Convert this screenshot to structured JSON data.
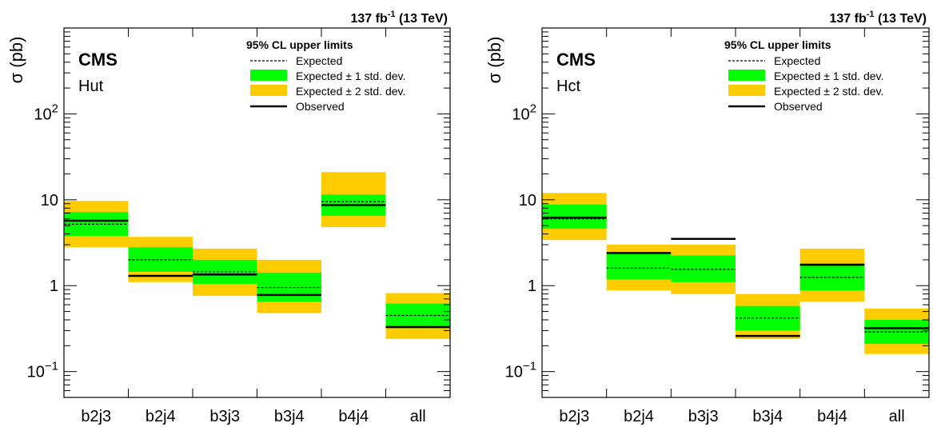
{
  "colors": {
    "band1": "#00ff00",
    "band2": "#ffcc00",
    "line": "#000000"
  },
  "legend_labels": {
    "title": "95% CL upper limits",
    "expected": "Expected",
    "one_sigma": "Expected ± 1 std. dev.",
    "two_sigma": "Expected ± 2 std. dev.",
    "observed": "Observed"
  },
  "lumi_label": {
    "main": "137 fb",
    "sup": "-1",
    "energy": " (13 TeV)"
  },
  "chart_data": [
    {
      "type": "bar",
      "experiment": "CMS",
      "process": "Hut",
      "ylabel": "σ (pb)",
      "yscale": "log",
      "ylim": [
        0.05,
        1000
      ],
      "yticks": [
        {
          "value": 0.1,
          "base": "10",
          "exp": "−1"
        },
        {
          "value": 1,
          "label": "1"
        },
        {
          "value": 10,
          "label": "10"
        },
        {
          "value": 100,
          "base": "10",
          "exp": "2"
        }
      ],
      "categories": [
        "b2j3",
        "b2j4",
        "b3j3",
        "b3j4",
        "b4j4",
        "all"
      ],
      "legend_position": "top-right",
      "series": [
        {
          "name": "Observed",
          "values": [
            5.7,
            1.3,
            1.35,
            0.78,
            8.7,
            0.33
          ]
        },
        {
          "name": "Expected",
          "values": [
            5.2,
            2.0,
            1.45,
            0.95,
            9.5,
            0.45
          ]
        },
        {
          "name": "Expected ± 1 std. dev.",
          "low": [
            3.8,
            1.45,
            1.05,
            0.65,
            6.5,
            0.32
          ],
          "high": [
            7.2,
            2.8,
            2.0,
            1.42,
            11.5,
            0.62
          ]
        },
        {
          "name": "Expected ± 2 std. dev.",
          "low": [
            2.8,
            1.1,
            0.76,
            0.48,
            4.8,
            0.24
          ],
          "high": [
            9.7,
            3.7,
            2.7,
            2.0,
            21.0,
            0.82
          ]
        }
      ]
    },
    {
      "type": "bar",
      "experiment": "CMS",
      "process": "Hct",
      "ylabel": "σ (pb)",
      "yscale": "log",
      "ylim": [
        0.05,
        1000
      ],
      "yticks": [
        {
          "value": 0.1,
          "base": "10",
          "exp": "−1"
        },
        {
          "value": 1,
          "label": "1"
        },
        {
          "value": 10,
          "label": "10"
        },
        {
          "value": 100,
          "base": "10",
          "exp": "2"
        }
      ],
      "categories": [
        "b2j3",
        "b2j4",
        "b3j3",
        "b3j4",
        "b4j4",
        "all"
      ],
      "legend_position": "top-right",
      "series": [
        {
          "name": "Observed",
          "values": [
            6.2,
            2.4,
            3.5,
            0.26,
            1.75,
            0.32
          ]
        },
        {
          "name": "Expected",
          "values": [
            6.0,
            1.6,
            1.55,
            0.42,
            1.25,
            0.29
          ]
        },
        {
          "name": "Expected ± 1 std. dev.",
          "low": [
            4.6,
            1.18,
            1.1,
            0.3,
            0.88,
            0.21
          ],
          "high": [
            8.8,
            2.35,
            2.25,
            0.58,
            1.82,
            0.4
          ]
        },
        {
          "name": "Expected ± 2 std. dev.",
          "low": [
            3.4,
            0.88,
            0.8,
            0.24,
            0.65,
            0.16
          ],
          "high": [
            12.0,
            3.0,
            3.0,
            0.8,
            2.7,
            0.54
          ]
        }
      ]
    }
  ]
}
